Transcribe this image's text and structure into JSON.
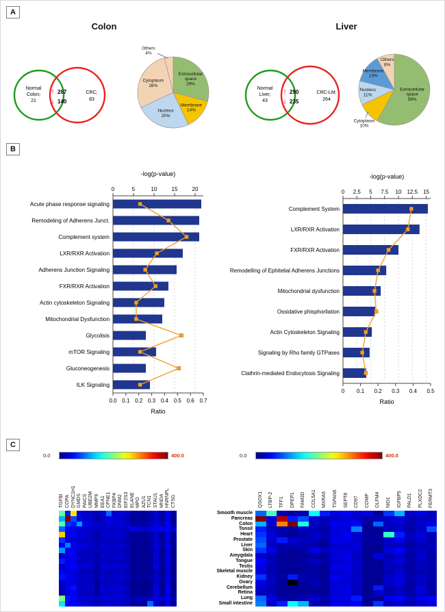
{
  "panelA": {
    "label": "A",
    "colon": {
      "title": "Colon",
      "venn": {
        "left_label_1": "Normal",
        "left_label_2": "Colon;",
        "left_count": "21",
        "up_arrow": "↑",
        "up_count": "267",
        "down_arrow": "↓",
        "down_count": "140",
        "right_label": "CRC;",
        "right_count": "83",
        "left_circle_color": "#1f9a1f",
        "right_circle_color": "#e8231f",
        "arrow_color": "#e02020"
      }
    },
    "liver": {
      "title": "Liver",
      "venn": {
        "left_label_1": "Normal",
        "left_label_2": "Liver;",
        "left_count": "43",
        "up_arrow": "↑",
        "up_count": "290",
        "down_arrow": "↓",
        "down_count": "235",
        "right_label": "CRC-LM;",
        "right_count": "264",
        "left_circle_color": "#1f9a1f",
        "right_circle_color": "#e8231f",
        "arrow_color": "#e02020"
      }
    }
  },
  "panelB": {
    "label": "B"
  },
  "panelC": {
    "label": "C",
    "scale_min": "0.0",
    "scale_max": "400.0",
    "tissues": [
      "Smooth muscle",
      "Pancreas",
      "Colon",
      "Tonsil",
      "Heart",
      "Prostate",
      "Liver",
      "Skin",
      "Amygdala",
      "Tongue",
      "Testis",
      "Skeletal muscle",
      "Kidney",
      "Ovary",
      "Cerebellum",
      "Retina",
      "Lung",
      "Small intestine"
    ]
  },
  "chart_data": [
    {
      "id": "colon-pie",
      "type": "pie",
      "unit": "%",
      "slices": [
        {
          "label": "Extracellular space",
          "pct": 29,
          "color": "#95bd72",
          "label_r": 0.62
        },
        {
          "label": "Membrane",
          "pct": 14,
          "color": "#f5c400",
          "label_r": 0.66
        },
        {
          "label": "Nucleus",
          "pct": 25,
          "color": "#bdd7ee",
          "label_r": 0.62
        },
        {
          "label": "Cytoplasm",
          "pct": 28,
          "color": "#f2d3b3",
          "label_r": 0.62
        },
        {
          "label": "Others",
          "pct": 4,
          "color": "#f2d3b3",
          "outside": true,
          "label_pos": [
            34,
            11
          ],
          "leader": [
            [
              62,
              22
            ],
            [
              47,
              15
            ]
          ]
        }
      ]
    },
    {
      "id": "liver-pie",
      "type": "pie",
      "unit": "%",
      "slices": [
        {
          "label": "Extracellular space",
          "pct": 58,
          "color": "#95bd72",
          "label_r": 0.52
        },
        {
          "label": "Cytoplasm",
          "pct": 10,
          "color": "#f5c400",
          "outside": true,
          "label_pos": [
            26,
            121
          ],
          "leader": [
            [
              32,
              104
            ],
            [
              28,
              113
            ]
          ]
        },
        {
          "label": "Nucleus",
          "pct": 11,
          "color": "#bdd7ee",
          "label_r": 0.75
        },
        {
          "label": "Membrane",
          "pct": 13,
          "color": "#5b9bd5",
          "label_r": 0.75
        },
        {
          "label": "Others",
          "pct": 8,
          "color": "#f2d3b3",
          "label_r": 0.8
        }
      ]
    },
    {
      "id": "colon-pathways-bar",
      "type": "bar",
      "orientation": "horizontal",
      "categories": [
        "Acute phase response signaling",
        "Remodeling of Adherens Junct.",
        "Complement system",
        "LXR/RXR Activation",
        "Adherens Junction Signaling",
        "FXR/RXR Activation",
        "Actin cytoskeleton Signaling",
        "Mitochondrial Dysfunction",
        "Glycolisis",
        "mTOR Signaling",
        "Gluconeogenesis",
        "ILK Signaling"
      ],
      "series": [
        {
          "name": "-log(p-value)",
          "values": [
            21.5,
            21.0,
            21.0,
            17.0,
            15.5,
            13.5,
            12.5,
            12.0,
            8.0,
            10.5,
            8.0,
            9.0
          ]
        },
        {
          "name": "Ratio",
          "values": [
            0.21,
            0.43,
            0.57,
            0.34,
            0.25,
            0.33,
            0.18,
            0.18,
            0.53,
            0.21,
            0.51,
            0.21
          ]
        }
      ],
      "top_axis": {
        "label": "-log(p-value)",
        "tick_values": [
          0,
          5,
          10,
          15,
          20
        ],
        "tick_labels": [
          "0",
          "5",
          "10",
          "15",
          "20"
        ],
        "max": 22
      },
      "bottom_axis": {
        "label": "Ratio",
        "tick_values": [
          0,
          0.1,
          0.2,
          0.3,
          0.4,
          0.5,
          0.6,
          0.7
        ],
        "tick_labels": [
          "0.0",
          "0.1",
          "0.2",
          "0.3",
          "0.4",
          "0.5",
          "0.6",
          "0.7"
        ],
        "max": 0.7
      },
      "bar_color": "#20368f",
      "ratio_color": "#f0a030",
      "grid": true
    },
    {
      "id": "liver-pathways-bar",
      "type": "bar",
      "orientation": "horizontal",
      "categories": [
        "Complement System",
        "LXR/RXR Activation",
        "FXR/RXR Activation",
        "Remodelling of Ephitelial Adherens Junctions",
        "Mitochondrial dysfunction",
        "Ossidative phisphorilation",
        "Actin Cytoskeleton Signaling",
        "Signaling by Rho family GTPases",
        "Clathrin-mediated Endocytosis Signaling"
      ],
      "series": [
        {
          "name": "-log(p-value)",
          "values": [
            15.3,
            13.8,
            10.0,
            7.8,
            6.8,
            5.8,
            5.2,
            4.8,
            4.2
          ]
        },
        {
          "name": "Ratio",
          "values": [
            0.39,
            0.37,
            0.26,
            0.2,
            0.18,
            0.19,
            0.13,
            0.11,
            0.13
          ]
        }
      ],
      "top_axis": {
        "label": "-log(p-value)",
        "tick_values": [
          0,
          2.5,
          5,
          7.5,
          10,
          12.5,
          15
        ],
        "tick_labels": [
          "0",
          "2.5",
          "5",
          "7.5",
          "10",
          "12.5",
          "15"
        ],
        "max": 15.8
      },
      "bottom_axis": {
        "label": "Ratio",
        "tick_values": [
          0,
          0.1,
          0.2,
          0.3,
          0.4,
          0.5
        ],
        "tick_labels": [
          "0",
          "0.1",
          "0.2",
          "0.3",
          "0.4",
          "0.5"
        ],
        "max": 0.5
      },
      "bar_color": "#20368f",
      "ratio_color": "#f0a030",
      "grid": true
    },
    {
      "id": "colon-heatmap",
      "type": "heatmap",
      "colormap": "jet",
      "vmin": 0,
      "vmax": 400,
      "scale_labels": [
        "0.0",
        "400.0"
      ],
      "columns": [
        "TGFBI",
        "COPA",
        "DYNC1H1",
        "GMDS",
        "PAICS",
        "UBE2M",
        "MMP9",
        "EEA1",
        "CPNE1",
        "FKBP4",
        "DNM2",
        "EIF2S3",
        "ELANE",
        "MPO",
        "AZU1",
        "TCN1",
        "STAU1",
        "MNDA",
        "HNRNPL",
        "CTSG"
      ],
      "values": [
        [
          190,
          60,
          260,
          40,
          30,
          25,
          20,
          35,
          90,
          30,
          40,
          25,
          15,
          15,
          10,
          20,
          35,
          15,
          45,
          10
        ],
        [
          120,
          400,
          80,
          35,
          30,
          30,
          15,
          25,
          40,
          35,
          30,
          25,
          10,
          12,
          10,
          15,
          30,
          12,
          40,
          8
        ],
        [
          180,
          70,
          60,
          110,
          45,
          35,
          30,
          30,
          35,
          30,
          35,
          30,
          15,
          15,
          12,
          25,
          35,
          20,
          50,
          12
        ],
        [
          90,
          50,
          45,
          35,
          30,
          30,
          25,
          25,
          30,
          25,
          30,
          25,
          40,
          35,
          30,
          35,
          40,
          45,
          45,
          30
        ],
        [
          270,
          45,
          50,
          30,
          35,
          25,
          15,
          30,
          30,
          30,
          30,
          25,
          10,
          10,
          8,
          12,
          30,
          10,
          40,
          8
        ],
        [
          70,
          40,
          35,
          30,
          25,
          25,
          20,
          25,
          25,
          25,
          25,
          20,
          10,
          10,
          8,
          15,
          30,
          12,
          35,
          8
        ],
        [
          50,
          100,
          40,
          35,
          40,
          30,
          15,
          30,
          30,
          30,
          30,
          25,
          10,
          10,
          8,
          15,
          35,
          12,
          45,
          8
        ],
        [
          110,
          45,
          40,
          30,
          25,
          25,
          25,
          25,
          30,
          25,
          25,
          20,
          10,
          10,
          8,
          12,
          30,
          10,
          35,
          8
        ],
        [
          30,
          40,
          45,
          25,
          25,
          25,
          12,
          30,
          25,
          30,
          30,
          25,
          8,
          8,
          6,
          10,
          35,
          10,
          40,
          6
        ],
        [
          60,
          40,
          40,
          25,
          25,
          25,
          20,
          25,
          25,
          25,
          25,
          20,
          10,
          10,
          8,
          12,
          30,
          10,
          35,
          8
        ],
        [
          25,
          45,
          50,
          30,
          35,
          30,
          12,
          35,
          30,
          35,
          30,
          30,
          8,
          8,
          6,
          10,
          40,
          10,
          45,
          6
        ],
        [
          45,
          35,
          35,
          25,
          20,
          20,
          12,
          25,
          20,
          25,
          25,
          20,
          8,
          8,
          6,
          10,
          25,
          8,
          30,
          6
        ],
        [
          55,
          45,
          40,
          30,
          30,
          25,
          15,
          30,
          25,
          30,
          30,
          25,
          12,
          12,
          10,
          15,
          30,
          12,
          40,
          10
        ],
        [
          30,
          40,
          40,
          25,
          25,
          25,
          10,
          25,
          25,
          25,
          25,
          20,
          8,
          8,
          6,
          10,
          30,
          10,
          35,
          6
        ],
        [
          25,
          45,
          55,
          25,
          30,
          30,
          10,
          35,
          30,
          30,
          35,
          30,
          8,
          8,
          6,
          10,
          40,
          10,
          45,
          6
        ],
        [
          20,
          40,
          45,
          25,
          25,
          25,
          10,
          30,
          25,
          30,
          30,
          25,
          8,
          8,
          6,
          10,
          35,
          10,
          40,
          6
        ],
        [
          200,
          55,
          50,
          35,
          30,
          30,
          25,
          30,
          35,
          30,
          35,
          25,
          20,
          25,
          20,
          25,
          35,
          30,
          45,
          20
        ],
        [
          140,
          50,
          45,
          40,
          35,
          30,
          20,
          30,
          30,
          30,
          30,
          25,
          12,
          12,
          10,
          90,
          30,
          15,
          40,
          10
        ]
      ]
    },
    {
      "id": "liver-heatmap",
      "type": "heatmap",
      "colormap": "jet",
      "vmin": 0,
      "vmax": 400,
      "scale_labels": [
        "0.0",
        "400.0"
      ],
      "columns": [
        "QSOX1",
        "LTBP-2",
        "TFF1",
        "DPEP1",
        "FAM3D",
        "COL5A1",
        "MXRA5",
        "TSPAN6",
        "SEPT8",
        "CD97",
        "COMP",
        "OLFM4",
        "NID1",
        "IGFBP5",
        "PALD1",
        "PLXDC2",
        "FERMT3"
      ],
      "values": [
        [
          90,
          180,
          20,
          15,
          20,
          150,
          60,
          40,
          50,
          35,
          40,
          10,
          70,
          120,
          30,
          40,
          25
        ],
        [
          400,
          40,
          380,
          60,
          80,
          30,
          20,
          30,
          35,
          30,
          15,
          25,
          30,
          35,
          20,
          25,
          25
        ],
        [
          120,
          30,
          300,
          400,
          160,
          25,
          20,
          45,
          40,
          50,
          10,
          90,
          25,
          30,
          20,
          30,
          40
        ],
        [
          60,
          25,
          20,
          15,
          30,
          20,
          15,
          35,
          35,
          100,
          8,
          10,
          25,
          30,
          15,
          25,
          80
        ],
        [
          70,
          35,
          15,
          10,
          15,
          30,
          20,
          35,
          45,
          30,
          12,
          8,
          170,
          60,
          25,
          35,
          20
        ],
        [
          80,
          30,
          60,
          30,
          25,
          25,
          15,
          40,
          40,
          30,
          10,
          12,
          30,
          40,
          20,
          30,
          20
        ],
        [
          90,
          25,
          15,
          20,
          20,
          15,
          10,
          30,
          30,
          35,
          8,
          8,
          25,
          25,
          15,
          20,
          25
        ],
        [
          70,
          40,
          15,
          10,
          15,
          40,
          25,
          35,
          35,
          30,
          10,
          8,
          35,
          50,
          20,
          25,
          20
        ],
        [
          30,
          20,
          10,
          8,
          10,
          15,
          10,
          35,
          40,
          25,
          8,
          40,
          20,
          30,
          15,
          30,
          15
        ],
        [
          50,
          25,
          12,
          10,
          15,
          25,
          15,
          30,
          35,
          30,
          10,
          8,
          25,
          35,
          15,
          25,
          20
        ],
        [
          40,
          20,
          12,
          10,
          12,
          15,
          10,
          40,
          40,
          30,
          8,
          10,
          25,
          25,
          15,
          25,
          20
        ],
        [
          35,
          20,
          10,
          8,
          10,
          15,
          10,
          30,
          35,
          25,
          8,
          8,
          20,
          30,
          15,
          20,
          15
        ],
        [
          70,
          25,
          15,
          60,
          20,
          15,
          10,
          45,
          35,
          30,
          8,
          8,
          30,
          35,
          20,
          30,
          20
        ],
        [
          40,
          25,
          10,
          null,
          12,
          20,
          12,
          35,
          35,
          25,
          8,
          8,
          30,
          40,
          15,
          25,
          15
        ],
        [
          30,
          20,
          10,
          8,
          10,
          12,
          10,
          35,
          40,
          25,
          8,
          60,
          20,
          25,
          15,
          35,
          15
        ],
        [
          25,
          20,
          10,
          8,
          10,
          12,
          10,
          35,
          40,
          25,
          8,
          30,
          20,
          25,
          15,
          30,
          15
        ],
        [
          90,
          40,
          15,
          10,
          20,
          30,
          20,
          35,
          40,
          60,
          10,
          8,
          40,
          50,
          25,
          40,
          45
        ],
        [
          100,
          25,
          60,
          150,
          120,
          20,
          15,
          40,
          35,
          45,
          8,
          70,
          25,
          30,
          20,
          30,
          35
        ]
      ]
    }
  ]
}
